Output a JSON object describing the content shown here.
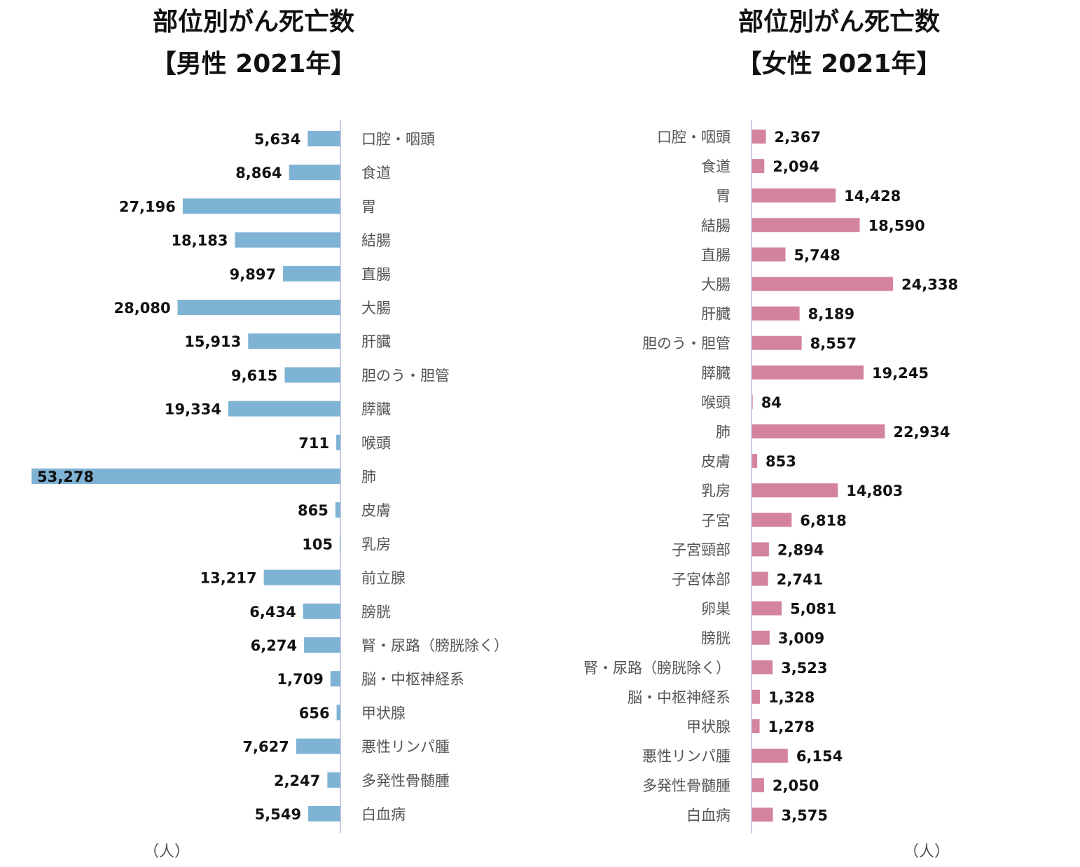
{
  "chart_data": [
    {
      "type": "bar",
      "orientation": "horizontal",
      "title": "部位別がん死亡数",
      "subtitle": "【男性 2021年】",
      "unit_label": "（人）",
      "color": "#7fb3d5",
      "categories": [
        "口腔・咽頭",
        "食道",
        "胃",
        "結腸",
        "直腸",
        "大腸",
        "肝臓",
        "胆のう・胆管",
        "膵臓",
        "喉頭",
        "肺",
        "皮膚",
        "乳房",
        "前立腺",
        "膀胱",
        "腎・尿路（膀胱除く）",
        "脳・中枢神経系",
        "甲状腺",
        "悪性リンパ腫",
        "多発性骨髄腫",
        "白血病"
      ],
      "values": [
        5634,
        8864,
        27196,
        18183,
        9897,
        28080,
        15913,
        9615,
        19334,
        711,
        53278,
        865,
        105,
        13217,
        6434,
        6274,
        1709,
        656,
        7627,
        2247,
        5549
      ],
      "labels": [
        "5,634",
        "8,864",
        "27,196",
        "18,183",
        "9,897",
        "28,080",
        "15,913",
        "9,615",
        "19,334",
        "711",
        "53,278",
        "865",
        "105",
        "13,217",
        "6,434",
        "6,274",
        "1,709",
        "656",
        "7,627",
        "2,247",
        "5,549"
      ],
      "direction": "bars extend to the left",
      "xlim": [
        0,
        53278
      ],
      "grid": false,
      "legend": "none"
    },
    {
      "type": "bar",
      "orientation": "horizontal",
      "title": "部位別がん死亡数",
      "subtitle": "【女性 2021年】",
      "unit_label": "（人）",
      "color": "#d4839f",
      "categories": [
        "口腔・咽頭",
        "食道",
        "胃",
        "結腸",
        "直腸",
        "大腸",
        "肝臓",
        "胆のう・胆管",
        "膵臓",
        "喉頭",
        "肺",
        "皮膚",
        "乳房",
        "子宮",
        "子宮頸部",
        "子宮体部",
        "卵巣",
        "膀胱",
        "腎・尿路（膀胱除く）",
        "脳・中枢神経系",
        "甲状腺",
        "悪性リンパ腫",
        "多発性骨髄腫",
        "白血病"
      ],
      "values": [
        2367,
        2094,
        14428,
        18590,
        5748,
        24338,
        8189,
        8557,
        19245,
        84,
        22934,
        853,
        14803,
        6818,
        2894,
        2741,
        5081,
        3009,
        3523,
        1328,
        1278,
        6154,
        2050,
        3575
      ],
      "labels": [
        "2,367",
        "2,094",
        "14,428",
        "18,590",
        "5,748",
        "24,338",
        "8,189",
        "8,557",
        "19,245",
        "84",
        "22,934",
        "853",
        "14,803",
        "6,818",
        "2,894",
        "2,741",
        "5,081",
        "3,009",
        "3,523",
        "1,328",
        "1,278",
        "6,154",
        "2,050",
        "3,575"
      ],
      "direction": "bars extend to the right",
      "xlim": [
        0,
        24338
      ],
      "grid": false,
      "legend": "none"
    }
  ]
}
